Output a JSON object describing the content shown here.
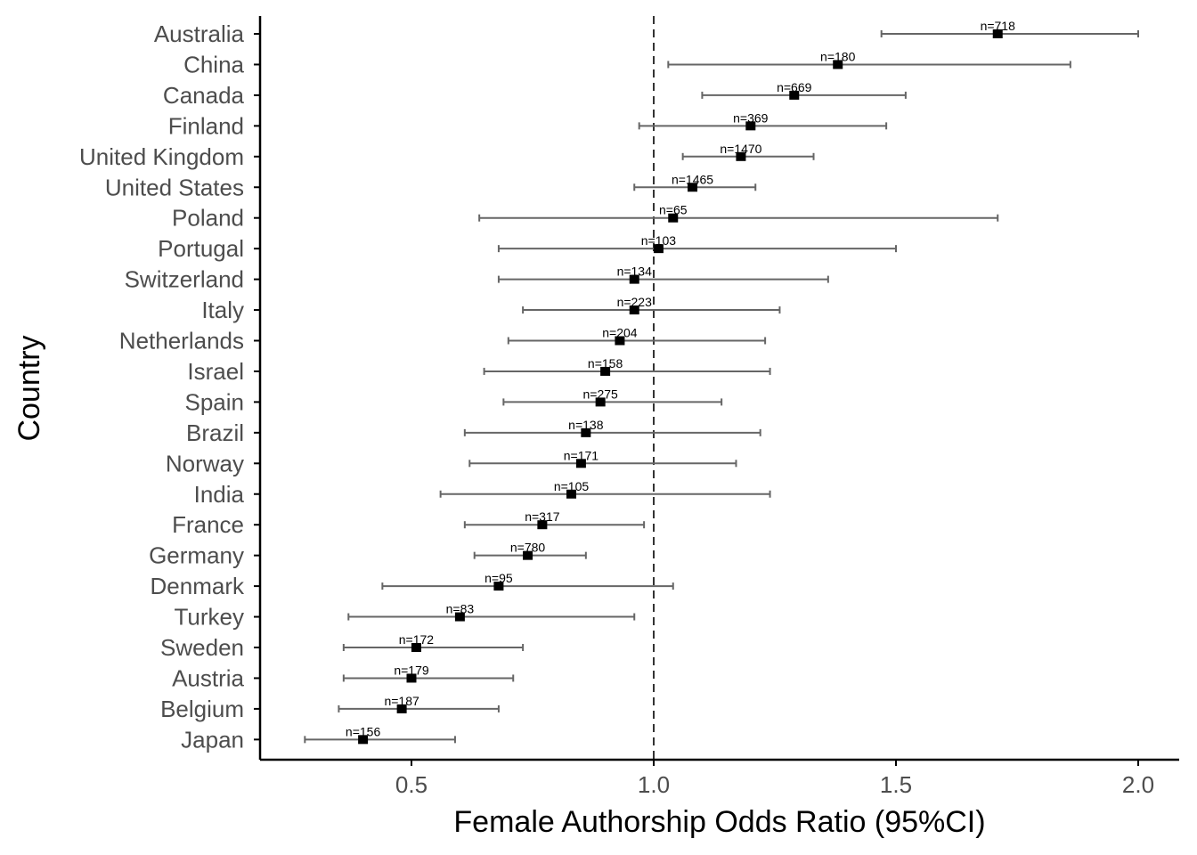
{
  "chart_data": {
    "type": "forest",
    "xlabel": "Female Authorship Odds Ratio (95%CI)",
    "ylabel": "Country",
    "xlim": [
      0.19,
      2.09
    ],
    "xticks": [
      "0.5",
      "1.0",
      "1.5",
      "2.0"
    ],
    "reference_line": 1.0,
    "grid": false,
    "colors": {
      "interval": "#666666",
      "point": "#000000",
      "reference": "#333333",
      "axis": "#000000"
    },
    "rows": [
      {
        "country": "Australia",
        "or": 1.71,
        "lower": 1.47,
        "upper": 2.0,
        "n": "n=718"
      },
      {
        "country": "China",
        "or": 1.38,
        "lower": 1.03,
        "upper": 1.86,
        "n": "n=180"
      },
      {
        "country": "Canada",
        "or": 1.29,
        "lower": 1.1,
        "upper": 1.52,
        "n": "n=669"
      },
      {
        "country": "Finland",
        "or": 1.2,
        "lower": 0.97,
        "upper": 1.48,
        "n": "n=369"
      },
      {
        "country": "United Kingdom",
        "or": 1.18,
        "lower": 1.06,
        "upper": 1.33,
        "n": "n=1470"
      },
      {
        "country": "United States",
        "or": 1.08,
        "lower": 0.96,
        "upper": 1.21,
        "n": "n=1465"
      },
      {
        "country": "Poland",
        "or": 1.04,
        "lower": 0.64,
        "upper": 1.71,
        "n": "n=65"
      },
      {
        "country": "Portugal",
        "or": 1.01,
        "lower": 0.68,
        "upper": 1.5,
        "n": "n=103"
      },
      {
        "country": "Switzerland",
        "or": 0.96,
        "lower": 0.68,
        "upper": 1.36,
        "n": "n=134"
      },
      {
        "country": "Italy",
        "or": 0.96,
        "lower": 0.73,
        "upper": 1.26,
        "n": "n=223"
      },
      {
        "country": "Netherlands",
        "or": 0.93,
        "lower": 0.7,
        "upper": 1.23,
        "n": "n=204"
      },
      {
        "country": "Israel",
        "or": 0.9,
        "lower": 0.65,
        "upper": 1.24,
        "n": "n=158"
      },
      {
        "country": "Spain",
        "or": 0.89,
        "lower": 0.69,
        "upper": 1.14,
        "n": "n=275"
      },
      {
        "country": "Brazil",
        "or": 0.86,
        "lower": 0.61,
        "upper": 1.22,
        "n": "n=138"
      },
      {
        "country": "Norway",
        "or": 0.85,
        "lower": 0.62,
        "upper": 1.17,
        "n": "n=171"
      },
      {
        "country": "India",
        "or": 0.83,
        "lower": 0.56,
        "upper": 1.24,
        "n": "n=105"
      },
      {
        "country": "France",
        "or": 0.77,
        "lower": 0.61,
        "upper": 0.98,
        "n": "n=317"
      },
      {
        "country": "Germany",
        "or": 0.74,
        "lower": 0.63,
        "upper": 0.86,
        "n": "n=780"
      },
      {
        "country": "Denmark",
        "or": 0.68,
        "lower": 0.44,
        "upper": 1.04,
        "n": "n=95"
      },
      {
        "country": "Turkey",
        "or": 0.6,
        "lower": 0.37,
        "upper": 0.96,
        "n": "n=83"
      },
      {
        "country": "Sweden",
        "or": 0.51,
        "lower": 0.36,
        "upper": 0.73,
        "n": "n=172"
      },
      {
        "country": "Austria",
        "or": 0.5,
        "lower": 0.36,
        "upper": 0.71,
        "n": "n=179"
      },
      {
        "country": "Belgium",
        "or": 0.48,
        "lower": 0.35,
        "upper": 0.68,
        "n": "n=187"
      },
      {
        "country": "Japan",
        "or": 0.4,
        "lower": 0.28,
        "upper": 0.59,
        "n": "n=156"
      }
    ]
  }
}
